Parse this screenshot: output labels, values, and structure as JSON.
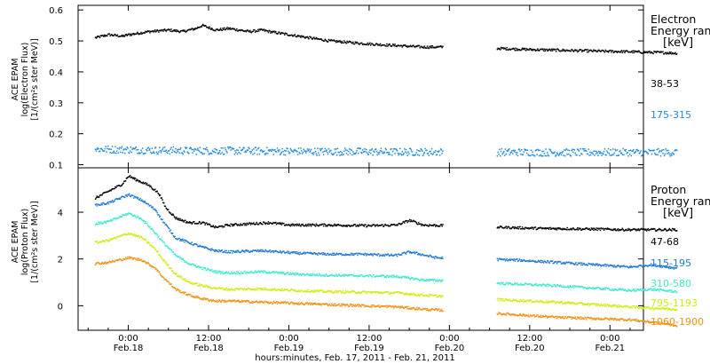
{
  "chart_data": [
    {
      "type": "scatter",
      "ylabel_lines": [
        "ACE EPAM",
        "log(Electron Flux)",
        "[1/(cm²s ster MeV)]"
      ],
      "yticks": [
        "0.1",
        "0.2",
        "0.3",
        "0.4",
        "0.5",
        "0.6"
      ],
      "ylim": [
        0.09,
        0.615
      ],
      "legend_title": [
        "Electron",
        "Energy ran",
        "[keV]"
      ],
      "series": [
        {
          "name": "38-53",
          "color": "#000000",
          "points": [
            [
              -5,
              0.51
            ],
            [
              -3,
              0.52
            ],
            [
              -1,
              0.515
            ],
            [
              0,
              0.52
            ],
            [
              3,
              0.53
            ],
            [
              6,
              0.535
            ],
            [
              8,
              0.53
            ],
            [
              10,
              0.54
            ],
            [
              11,
              0.55
            ],
            [
              13,
              0.535
            ],
            [
              15,
              0.54
            ],
            [
              18,
              0.53
            ],
            [
              20,
              0.535
            ],
            [
              21,
              0.53
            ],
            [
              24,
              0.52
            ],
            [
              27,
              0.51
            ],
            [
              30,
              0.5
            ],
            [
              33,
              0.495
            ],
            [
              36,
              0.49
            ],
            [
              40,
              0.485
            ],
            [
              44,
              0.48
            ],
            [
              48,
              0.48
            ],
            [
              52,
              0.478
            ],
            [
              56,
              0.475
            ],
            [
              60,
              0.472
            ],
            [
              64,
              0.47
            ],
            [
              68,
              0.468
            ],
            [
              72,
              0.466
            ],
            [
              75,
              0.465
            ],
            [
              76,
              0.464
            ],
            [
              78,
              0.463
            ],
            [
              80,
              0.462
            ],
            [
              82,
              0.46
            ]
          ]
        },
        {
          "name": "175-315",
          "color": "#1e88dc",
          "points": [
            [
              -5,
              0.15
            ],
            [
              0,
              0.148
            ],
            [
              5,
              0.146
            ],
            [
              10,
              0.145
            ],
            [
              15,
              0.145
            ],
            [
              20,
              0.144
            ],
            [
              25,
              0.143
            ],
            [
              30,
              0.142
            ],
            [
              35,
              0.142
            ],
            [
              40,
              0.141
            ],
            [
              45,
              0.141
            ],
            [
              50,
              0.14
            ],
            [
              55,
              0.14
            ],
            [
              60,
              0.14
            ],
            [
              64,
              0.139
            ],
            [
              75,
              0.14
            ],
            [
              78,
              0.139
            ],
            [
              82,
              0.14
            ]
          ]
        }
      ]
    },
    {
      "type": "scatter",
      "ylabel_lines": [
        "ACE EPAM",
        "log(Proton Flux)",
        "[1/(cm²s ster MeV)]"
      ],
      "yticks": [
        "0",
        "2",
        "4"
      ],
      "ylim": [
        -1.05,
        5.9
      ],
      "legend_title": [
        "Proton",
        "Energy ran",
        "[keV]"
      ],
      "series": [
        {
          "name": "47-68",
          "color": "#000000",
          "points": [
            [
              -5,
              4.6
            ],
            [
              -3,
              4.9
            ],
            [
              -1,
              5.2
            ],
            [
              0,
              5.55
            ],
            [
              1,
              5.4
            ],
            [
              3,
              5.15
            ],
            [
              4.5,
              4.8
            ],
            [
              5.5,
              4.2
            ],
            [
              7,
              3.75
            ],
            [
              9,
              3.55
            ],
            [
              11,
              3.55
            ],
            [
              13,
              3.35
            ],
            [
              15,
              3.45
            ],
            [
              18,
              3.5
            ],
            [
              21,
              3.55
            ],
            [
              24,
              3.45
            ],
            [
              30,
              3.45
            ],
            [
              36,
              3.42
            ],
            [
              40,
              3.45
            ],
            [
              42,
              3.65
            ],
            [
              44,
              3.45
            ],
            [
              50,
              3.4
            ],
            [
              56,
              3.35
            ],
            [
              62,
              3.3
            ],
            [
              64,
              3.3
            ],
            [
              75,
              3.25
            ],
            [
              82,
              3.25
            ]
          ]
        },
        {
          "name": "115-195",
          "color": "#1e78d2",
          "points": [
            [
              -5,
              4.3
            ],
            [
              -3,
              4.4
            ],
            [
              0,
              4.75
            ],
            [
              2,
              4.5
            ],
            [
              4,
              4.1
            ],
            [
              5,
              3.65
            ],
            [
              7,
              2.9
            ],
            [
              9,
              2.7
            ],
            [
              11,
              2.5
            ],
            [
              13,
              2.35
            ],
            [
              15,
              2.3
            ],
            [
              20,
              2.35
            ],
            [
              25,
              2.25
            ],
            [
              30,
              2.2
            ],
            [
              35,
              2.2
            ],
            [
              40,
              2.15
            ],
            [
              42,
              2.3
            ],
            [
              46,
              2.05
            ],
            [
              52,
              2.0
            ],
            [
              58,
              1.95
            ],
            [
              64,
              1.85
            ],
            [
              75,
              1.65
            ],
            [
              78,
              1.75
            ],
            [
              82,
              1.6
            ]
          ]
        },
        {
          "name": "310-580",
          "color": "#3ee8cc",
          "points": [
            [
              -5,
              3.5
            ],
            [
              -3,
              3.6
            ],
            [
              0,
              3.95
            ],
            [
              2,
              3.7
            ],
            [
              4,
              3.1
            ],
            [
              5,
              2.75
            ],
            [
              7,
              2.15
            ],
            [
              9,
              1.8
            ],
            [
              11,
              1.6
            ],
            [
              13,
              1.45
            ],
            [
              15,
              1.4
            ],
            [
              20,
              1.45
            ],
            [
              25,
              1.35
            ],
            [
              30,
              1.3
            ],
            [
              35,
              1.28
            ],
            [
              40,
              1.25
            ],
            [
              44,
              1.1
            ],
            [
              50,
              1.05
            ],
            [
              56,
              0.95
            ],
            [
              64,
              0.85
            ],
            [
              75,
              0.65
            ],
            [
              78,
              0.7
            ],
            [
              82,
              0.6
            ]
          ]
        },
        {
          "name": "795-1193",
          "color": "#d2ea10",
          "points": [
            [
              -5,
              2.7
            ],
            [
              -3,
              2.8
            ],
            [
              0,
              3.1
            ],
            [
              2,
              2.9
            ],
            [
              4,
              2.4
            ],
            [
              5,
              2.0
            ],
            [
              7,
              1.35
            ],
            [
              9,
              1.0
            ],
            [
              11,
              0.85
            ],
            [
              13,
              0.75
            ],
            [
              15,
              0.7
            ],
            [
              20,
              0.72
            ],
            [
              25,
              0.65
            ],
            [
              30,
              0.6
            ],
            [
              35,
              0.58
            ],
            [
              40,
              0.55
            ],
            [
              44,
              0.45
            ],
            [
              50,
              0.35
            ],
            [
              56,
              0.25
            ],
            [
              64,
              0.15
            ],
            [
              75,
              -0.05
            ],
            [
              78,
              -0.1
            ],
            [
              82,
              -0.15
            ]
          ]
        },
        {
          "name": "1060-1900",
          "color": "#f0900f",
          "points": [
            [
              -5,
              1.8
            ],
            [
              -3,
              1.85
            ],
            [
              0,
              2.05
            ],
            [
              2,
              1.95
            ],
            [
              4,
              1.6
            ],
            [
              5,
              1.25
            ],
            [
              7,
              0.7
            ],
            [
              9,
              0.45
            ],
            [
              11,
              0.3
            ],
            [
              13,
              0.2
            ],
            [
              15,
              0.2
            ],
            [
              20,
              0.15
            ],
            [
              25,
              0.1
            ],
            [
              30,
              0.05
            ],
            [
              35,
              0.0
            ],
            [
              40,
              -0.05
            ],
            [
              44,
              -0.15
            ],
            [
              50,
              -0.25
            ],
            [
              56,
              -0.35
            ],
            [
              64,
              -0.5
            ],
            [
              75,
              -0.6
            ],
            [
              78,
              -0.7
            ],
            [
              82,
              -0.85
            ]
          ]
        }
      ]
    }
  ],
  "x_axis": {
    "ticks": [
      {
        "t": 0,
        "time": "0:00",
        "date": "Feb.18"
      },
      {
        "t": 12,
        "time": "12:00",
        "date": "Feb.18"
      },
      {
        "t": 24,
        "time": "0:00",
        "date": "Feb.19"
      },
      {
        "t": 36,
        "time": "12:00",
        "date": "Feb.19"
      },
      {
        "t": 48,
        "time": "0:00",
        "date": "Feb.20"
      },
      {
        "t": 60,
        "time": "12:00",
        "date": "Feb.20"
      },
      {
        "t": 72,
        "time": "0:00",
        "date": "Feb.21"
      }
    ],
    "label": "hours:minutes, Feb. 17, 2011 - Feb. 21, 2011",
    "data_gap_hours": [
      47,
      55
    ]
  }
}
